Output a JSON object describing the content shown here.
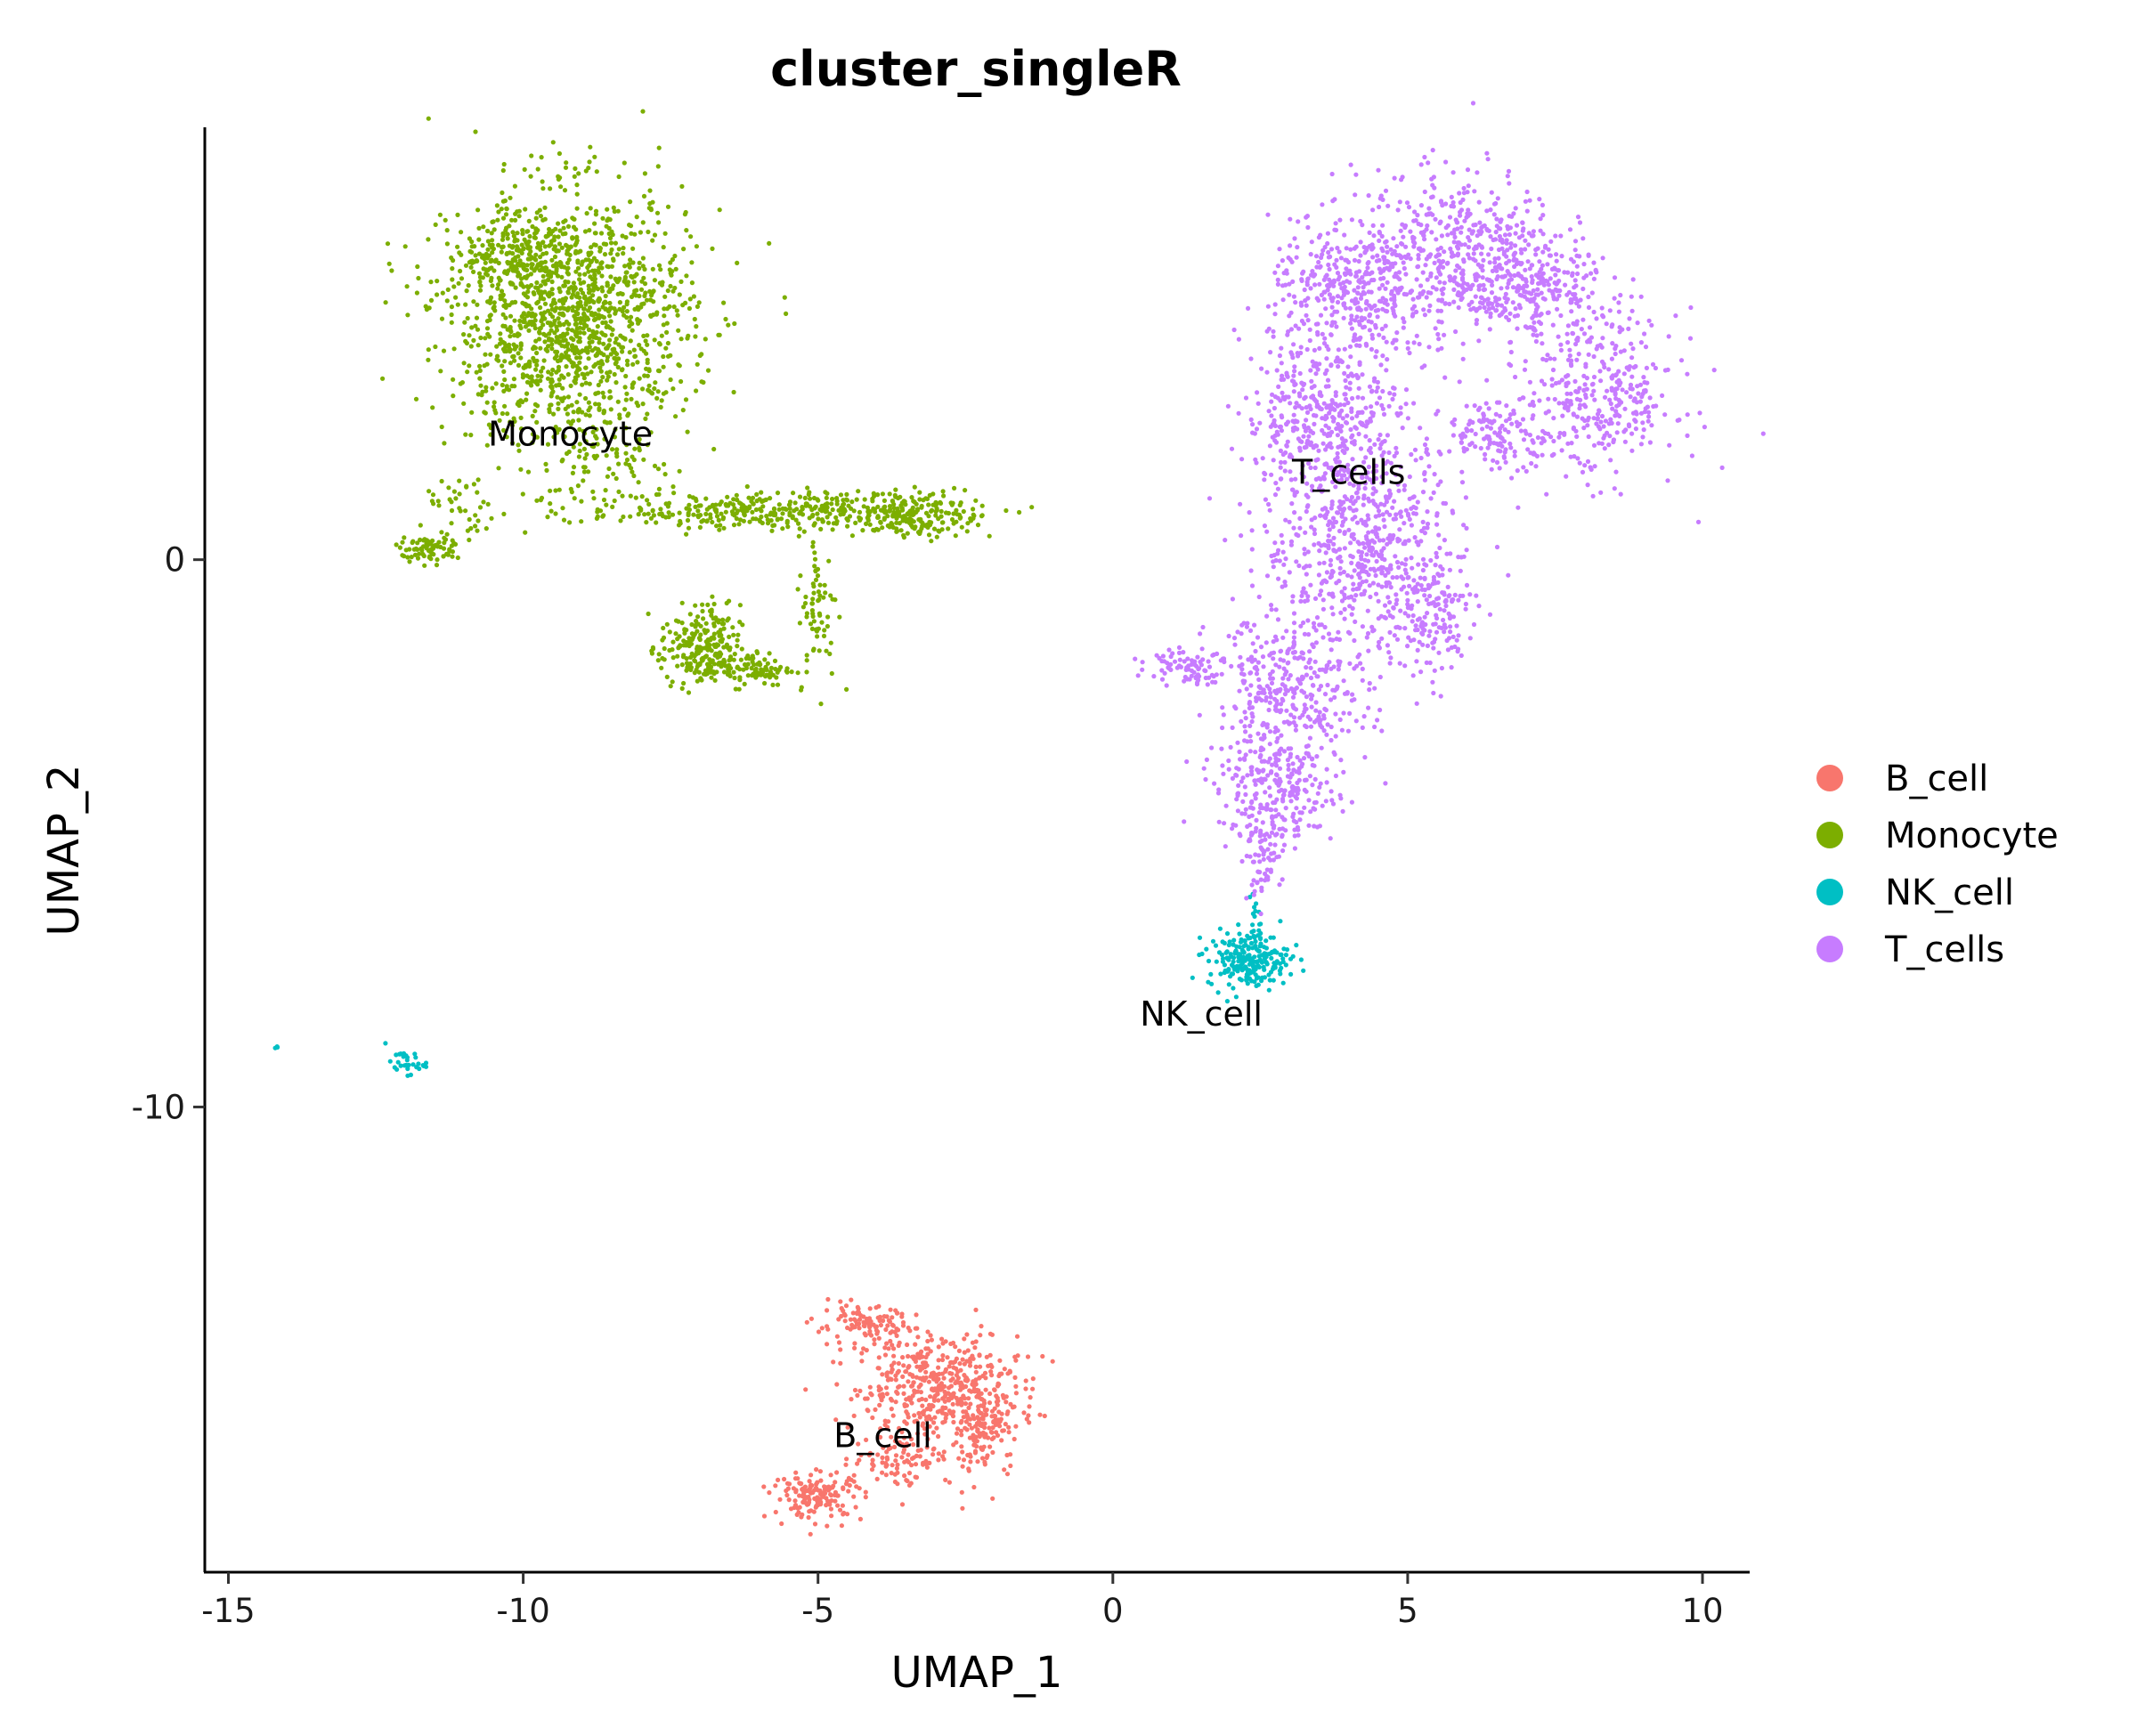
{
  "chart_data": {
    "type": "scatter",
    "title": "cluster_singleR",
    "xlabel": "UMAP_1",
    "ylabel": "UMAP_2",
    "xlim": [
      -15.4,
      10.8
    ],
    "ylim": [
      -18.5,
      7.9
    ],
    "x_ticks": [
      -15,
      -10,
      -5,
      0,
      5,
      10
    ],
    "x_tick_labels": [
      "-15",
      "-10",
      "-5",
      "0",
      "5",
      "10"
    ],
    "y_ticks": [
      0,
      -10
    ],
    "y_tick_labels": [
      "0",
      "-10"
    ],
    "grid": false,
    "legend_position": "right",
    "series": [
      {
        "name": "B_cell",
        "color": "#F8766D",
        "label": "B_cell",
        "label_pos": [
          -3.9,
          -16.0
        ],
        "regions": [
          {
            "cx": -3.0,
            "cy": -15.1,
            "sx": 0.8,
            "sy": 0.55,
            "n": 420
          },
          {
            "cx": -2.2,
            "cy": -15.8,
            "sx": 0.35,
            "sy": 0.6,
            "n": 160
          },
          {
            "cx": -4.2,
            "cy": -14.0,
            "sx": 0.5,
            "sy": 0.2,
            "n": 110
          },
          {
            "cx": -5.0,
            "cy": -17.1,
            "sx": 0.45,
            "sy": 0.25,
            "n": 150
          },
          {
            "cx": -3.6,
            "cy": -16.4,
            "sx": 0.5,
            "sy": 0.3,
            "n": 90
          }
        ]
      },
      {
        "name": "Monocyte",
        "color": "#7CAE00",
        "label": "Monocyte",
        "label_pos": [
          -9.2,
          2.3
        ],
        "regions": [
          {
            "cx": -9.2,
            "cy": 4.4,
            "sx": 1.2,
            "sy": 1.35,
            "n": 1400
          },
          {
            "cx": -10.2,
            "cy": 5.6,
            "sx": 0.7,
            "sy": 0.4,
            "n": 150
          },
          {
            "cx": -5.8,
            "cy": 0.9,
            "sx": 1.9,
            "sy": 0.2,
            "n": 380
          },
          {
            "cx": -3.3,
            "cy": 0.8,
            "sx": 0.6,
            "sy": 0.25,
            "n": 160
          },
          {
            "cx": -11.6,
            "cy": 0.2,
            "sx": 0.3,
            "sy": 0.15,
            "n": 80
          },
          {
            "cx": -11.0,
            "cy": 0.9,
            "sx": 0.4,
            "sy": 0.35,
            "n": 40
          },
          {
            "cx": -7.0,
            "cy": -1.6,
            "sx": 0.4,
            "sy": 0.45,
            "n": 220
          },
          {
            "cx": -6.2,
            "cy": -2.0,
            "sx": 0.45,
            "sy": 0.18,
            "n": 100
          },
          {
            "cx": -5.0,
            "cy": -0.9,
            "sx": 0.2,
            "sy": 0.8,
            "n": 70
          },
          {
            "cx": -8.5,
            "cy": 1.8,
            "sx": 0.6,
            "sy": 0.4,
            "n": 60
          }
        ]
      },
      {
        "name": "NK_cell",
        "color": "#00BFC4",
        "label": "NK_cell",
        "label_pos": [
          1.5,
          -8.3
        ],
        "regions": [
          {
            "cx": 2.3,
            "cy": -7.3,
            "sx": 0.4,
            "sy": 0.3,
            "n": 220
          },
          {
            "cx": 2.4,
            "cy": -6.5,
            "sx": 0.05,
            "sy": 0.3,
            "n": 14
          },
          {
            "cx": -12.0,
            "cy": -9.2,
            "sx": 0.2,
            "sy": 0.12,
            "n": 30
          },
          {
            "cx": -14.2,
            "cy": -8.9,
            "sx": 0.03,
            "sy": 0.03,
            "n": 3
          }
        ]
      },
      {
        "name": "T_cells",
        "color": "#C77CFF",
        "label": "T_cells",
        "label_pos": [
          4.0,
          1.6
        ],
        "regions": [
          {
            "cx": 5.8,
            "cy": 5.6,
            "sx": 1.0,
            "sy": 0.9,
            "n": 520
          },
          {
            "cx": 4.0,
            "cy": 4.8,
            "sx": 0.8,
            "sy": 0.8,
            "n": 380
          },
          {
            "cx": 8.3,
            "cy": 3.0,
            "sx": 0.75,
            "sy": 0.9,
            "n": 340
          },
          {
            "cx": 7.2,
            "cy": 4.9,
            "sx": 0.6,
            "sy": 0.6,
            "n": 220
          },
          {
            "cx": 6.6,
            "cy": 2.3,
            "sx": 0.6,
            "sy": 0.35,
            "n": 140
          },
          {
            "cx": 3.6,
            "cy": 2.6,
            "sx": 0.8,
            "sy": 0.8,
            "n": 380
          },
          {
            "cx": 4.2,
            "cy": 0.3,
            "sx": 1.0,
            "sy": 1.1,
            "n": 600
          },
          {
            "cx": 3.0,
            "cy": -2.5,
            "sx": 0.8,
            "sy": 0.9,
            "n": 380
          },
          {
            "cx": 2.8,
            "cy": -4.3,
            "sx": 0.6,
            "sy": 0.6,
            "n": 240
          },
          {
            "cx": 2.5,
            "cy": -5.5,
            "sx": 0.2,
            "sy": 0.4,
            "n": 60
          },
          {
            "cx": 1.3,
            "cy": -1.9,
            "sx": 0.4,
            "sy": 0.2,
            "n": 80
          },
          {
            "cx": 5.3,
            "cy": -1.0,
            "sx": 0.5,
            "sy": 0.7,
            "n": 160
          }
        ]
      }
    ]
  }
}
